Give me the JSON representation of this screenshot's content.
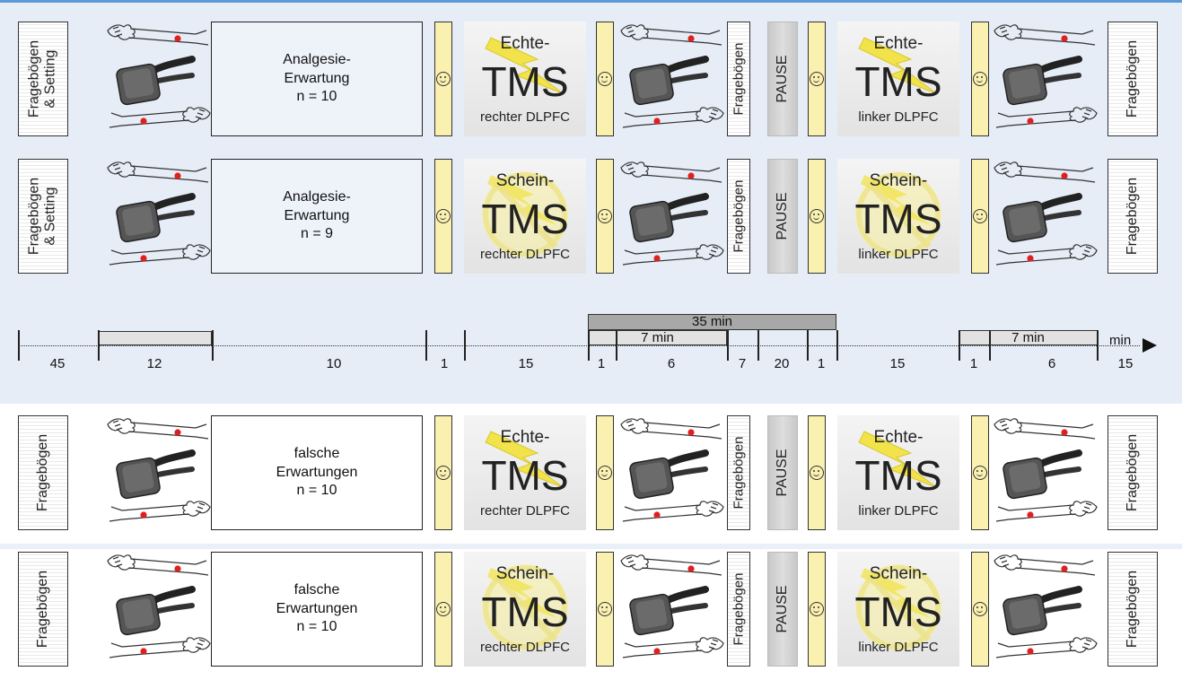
{
  "rows": [
    {
      "doc": "Fragebögen\n& Setting",
      "box": "Analgesie-\nErwartung\nn = 10",
      "tms_top": "Echte-",
      "tms_mid": "TMS",
      "tms_bot_1": "rechter DLPFC",
      "tms2_top": "Echte-",
      "tms2_bot": "linker DLPFC",
      "frag": "Fragebögen",
      "pause": "PAUSE",
      "end": "Fragebögen",
      "sham": false
    },
    {
      "doc": "Fragebögen\n& Setting",
      "box": "Analgesie-\nErwartung\nn = 9",
      "tms_top": "Schein-",
      "tms_mid": "TMS",
      "tms_bot_1": "rechter DLPFC",
      "tms2_top": "Schein-",
      "tms2_bot": "linker DLPFC",
      "frag": "Fragebögen",
      "pause": "PAUSE",
      "end": "Fragebögen",
      "sham": true
    },
    {
      "doc": "Fragebögen",
      "box": "falsche\nErwartungen\nn = 10",
      "tms_top": "Echte-",
      "tms_mid": "TMS",
      "tms_bot_1": "rechter DLPFC",
      "tms2_top": "Echte-",
      "tms2_bot": "linker DLPFC",
      "frag": "Fragebögen",
      "pause": "PAUSE",
      "end": "Fragebögen",
      "sham": false
    },
    {
      "doc": "Fragebögen",
      "box": "falsche\nErwartungen\nn = 10",
      "tms_top": "Schein-",
      "tms_mid": "TMS",
      "tms_bot_1": "rechter DLPFC",
      "tms2_top": "Schein-",
      "tms2_bot": "linker DLPFC",
      "frag": "Fragebögen",
      "pause": "PAUSE",
      "end": "Fragebögen",
      "sham": true
    }
  ],
  "timeline": {
    "durations": [
      "45",
      "12",
      "10",
      "1",
      "15",
      "1",
      "6",
      "7",
      "20",
      "1",
      "15",
      "1",
      "6",
      "15"
    ],
    "total_label": "35 min",
    "sub_label_1": "7 min",
    "sub_label_2": "7 min",
    "unit": "min"
  },
  "colors": {
    "accent": "#5b9bd5",
    "smiley": "#faf0b0",
    "bolt": "#f2e34a",
    "dot": "#e02020"
  }
}
